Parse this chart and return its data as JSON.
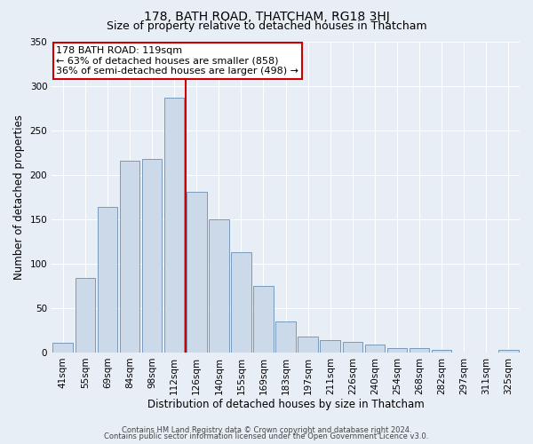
{
  "title": "178, BATH ROAD, THATCHAM, RG18 3HJ",
  "subtitle": "Size of property relative to detached houses in Thatcham",
  "xlabel": "Distribution of detached houses by size in Thatcham",
  "ylabel": "Number of detached properties",
  "categories": [
    "41sqm",
    "55sqm",
    "69sqm",
    "84sqm",
    "98sqm",
    "112sqm",
    "126sqm",
    "140sqm",
    "155sqm",
    "169sqm",
    "183sqm",
    "197sqm",
    "211sqm",
    "226sqm",
    "240sqm",
    "254sqm",
    "268sqm",
    "282sqm",
    "297sqm",
    "311sqm",
    "325sqm"
  ],
  "values": [
    11,
    84,
    164,
    216,
    218,
    287,
    181,
    150,
    113,
    75,
    35,
    18,
    14,
    12,
    9,
    5,
    5,
    3,
    0,
    0,
    3
  ],
  "bar_color": "#ccd9e8",
  "bar_edge_color": "#7799bb",
  "vline_color": "#cc0000",
  "vline_x": 5.5,
  "annotation_title": "178 BATH ROAD: 119sqm",
  "annotation_line1": "← 63% of detached houses are smaller (858)",
  "annotation_line2": "36% of semi-detached houses are larger (498) →",
  "annotation_box_color": "#cc0000",
  "ylim": [
    0,
    350
  ],
  "yticks": [
    0,
    50,
    100,
    150,
    200,
    250,
    300,
    350
  ],
  "background_color": "#e8eef5",
  "plot_bg_color": "#e8eef5",
  "footer_line1": "Contains HM Land Registry data © Crown copyright and database right 2024.",
  "footer_line2": "Contains public sector information licensed under the Open Government Licence v3.0.",
  "title_fontsize": 10,
  "subtitle_fontsize": 9,
  "axis_label_fontsize": 8.5,
  "tick_fontsize": 7.5,
  "annotation_fontsize": 8,
  "footer_fontsize": 6
}
